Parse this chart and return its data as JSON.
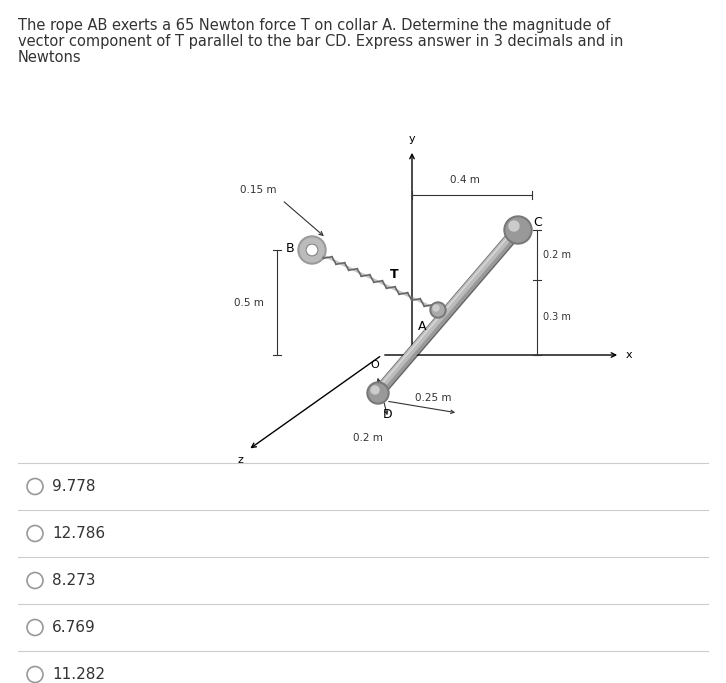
{
  "title_line1": "The rope AB exerts a 65 Newton force T on collar A. Determine the magnitude of",
  "title_line2": "vector component of T parallel to the bar CD. Express answer in 3 decimals and in",
  "title_line3": "Newtons",
  "title_fontsize": 10.5,
  "choices": [
    "9.778",
    "12.786",
    "8.273",
    "6.769",
    "11.282"
  ],
  "choice_fontsize": 11,
  "bg_color": "#ffffff",
  "divider_color": "#cccccc",
  "text_color": "#333333",
  "label_color": "#222222",
  "dim_color": "#333333"
}
